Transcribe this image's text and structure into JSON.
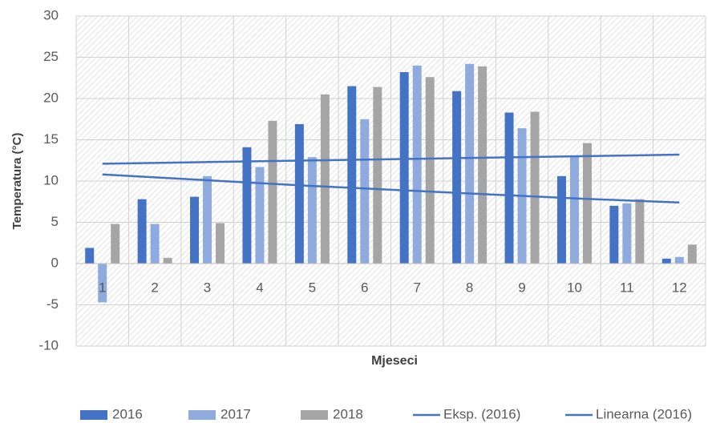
{
  "chart_data": {
    "type": "bar",
    "x_label": "Mjeseci",
    "y_label": "Temperatura (°C)",
    "categories": [
      "1",
      "2",
      "3",
      "4",
      "5",
      "6",
      "7",
      "8",
      "9",
      "10",
      "11",
      "12"
    ],
    "series": [
      {
        "name": "2016",
        "color": "#4472c4",
        "values": [
          1.9,
          7.8,
          8.1,
          14.1,
          16.9,
          21.5,
          23.2,
          20.9,
          18.3,
          10.6,
          7.0,
          0.6
        ]
      },
      {
        "name": "2017",
        "color": "#8faadc",
        "values": [
          -4.7,
          4.8,
          10.6,
          11.7,
          12.9,
          17.5,
          24.0,
          24.2,
          16.4,
          12.9,
          7.3,
          0.8
        ]
      },
      {
        "name": "2018",
        "color": "#a5a5a5",
        "values": [
          4.8,
          0.7,
          4.9,
          17.3,
          20.5,
          21.4,
          22.6,
          23.9,
          18.4,
          14.6,
          7.8,
          2.3
        ]
      },
      {
        "name": "Eksp. (2016)",
        "type": "line",
        "color": "#4472c4",
        "values": [
          10.8,
          10.45,
          10.1,
          9.75,
          9.4,
          9.1,
          8.8,
          8.5,
          8.2,
          7.9,
          7.65,
          7.4
        ]
      },
      {
        "name": "Linearna (2016)",
        "type": "line",
        "color": "#4472c4",
        "values": [
          12.1,
          12.2,
          12.3,
          12.4,
          12.5,
          12.6,
          12.7,
          12.8,
          12.9,
          13.0,
          13.1,
          13.2
        ]
      }
    ],
    "ylim": [
      -10,
      30
    ],
    "yticks": [
      -10,
      -5,
      0,
      5,
      10,
      15,
      20,
      25,
      30
    ],
    "grid": true,
    "legend": "bottom"
  }
}
